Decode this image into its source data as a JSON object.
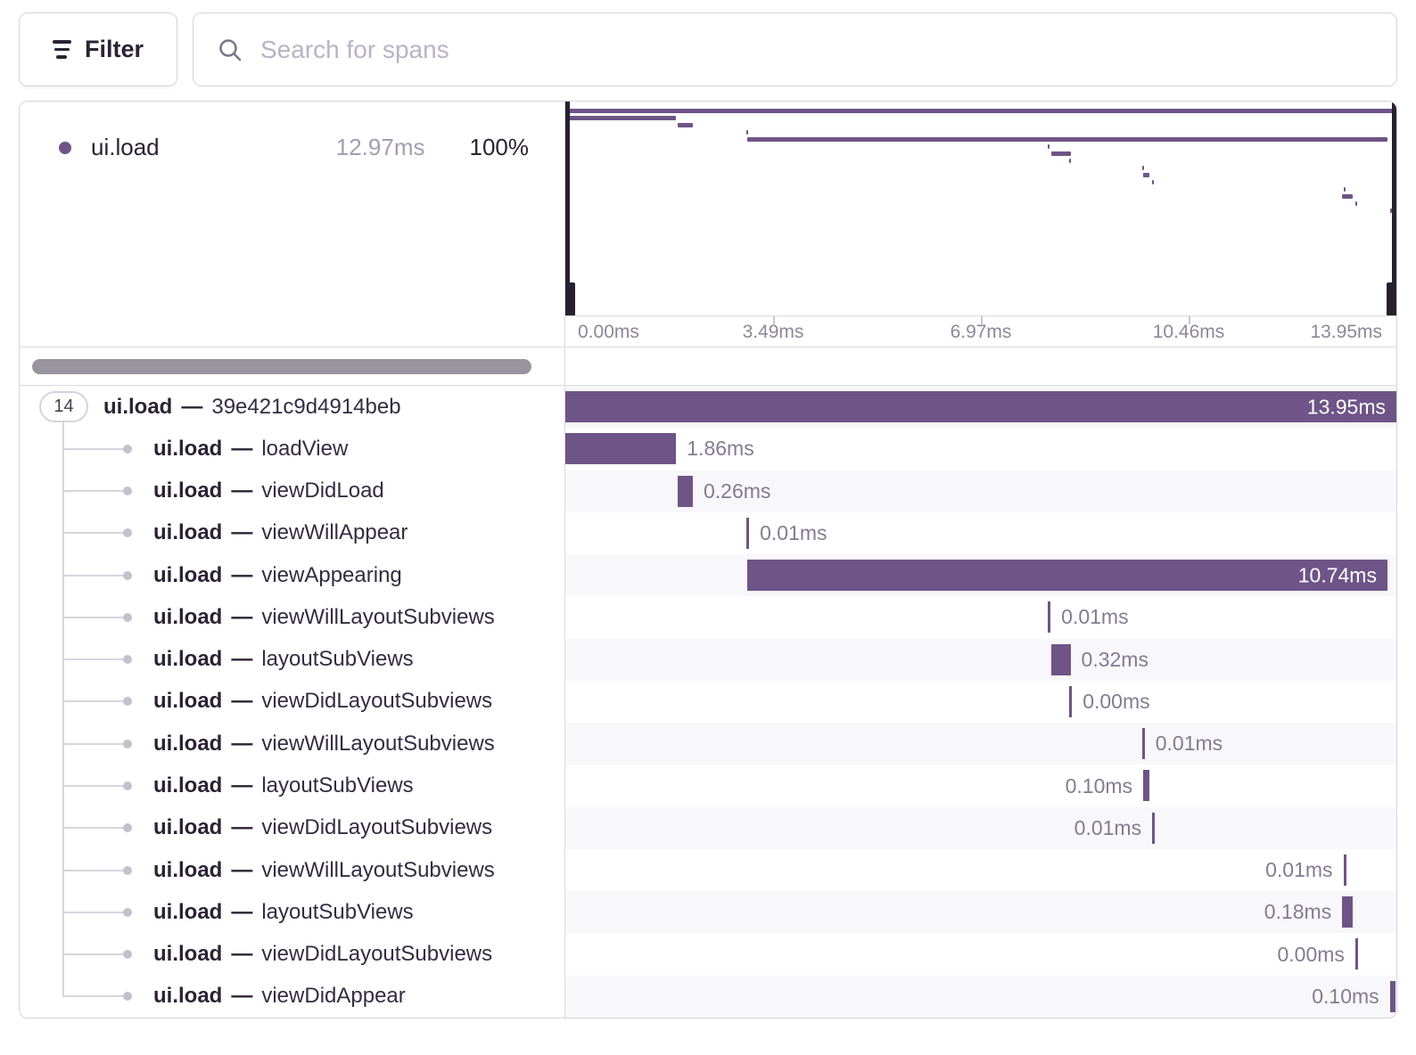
{
  "toolbar": {
    "filter_label": "Filter",
    "search_placeholder": "Search for spans",
    "search_value": ""
  },
  "legend": {
    "op": "ui.load",
    "duration": "12.97ms",
    "percent": "100%"
  },
  "axis": {
    "total_ms": 13.95,
    "ticks": [
      {
        "label": "0.00ms",
        "pos_pct": 0
      },
      {
        "label": "3.49ms",
        "pos_pct": 25
      },
      {
        "label": "6.97ms",
        "pos_pct": 50
      },
      {
        "label": "10.46ms",
        "pos_pct": 75
      },
      {
        "label": "13.95ms",
        "pos_pct": 100
      }
    ]
  },
  "spans": [
    {
      "op": "ui.load",
      "name": "39e421c9d4914beb",
      "child_count": "14",
      "start_ms": 0.0,
      "duration_ms": 13.95,
      "duration_label": "13.95ms",
      "label_position": "inside"
    },
    {
      "op": "ui.load",
      "name": "loadView",
      "start_ms": 0.0,
      "duration_ms": 1.86,
      "duration_label": "1.86ms",
      "label_position": "right"
    },
    {
      "op": "ui.load",
      "name": "viewDidLoad",
      "start_ms": 1.88,
      "duration_ms": 0.26,
      "duration_label": "0.26ms",
      "label_position": "right"
    },
    {
      "op": "ui.load",
      "name": "viewWillAppear",
      "start_ms": 3.04,
      "duration_ms": 0.01,
      "duration_label": "0.01ms",
      "label_position": "right"
    },
    {
      "op": "ui.load",
      "name": "viewAppearing",
      "start_ms": 3.06,
      "duration_ms": 10.74,
      "duration_label": "10.74ms",
      "label_position": "inside"
    },
    {
      "op": "ui.load",
      "name": "viewWillLayoutSubviews",
      "start_ms": 8.1,
      "duration_ms": 0.01,
      "duration_label": "0.01ms",
      "label_position": "right"
    },
    {
      "op": "ui.load",
      "name": "layoutSubViews",
      "start_ms": 8.16,
      "duration_ms": 0.32,
      "duration_label": "0.32ms",
      "label_position": "right"
    },
    {
      "op": "ui.load",
      "name": "viewDidLayoutSubviews",
      "start_ms": 8.46,
      "duration_ms": 0.0,
      "duration_label": "0.00ms",
      "label_position": "right"
    },
    {
      "op": "ui.load",
      "name": "viewWillLayoutSubviews",
      "start_ms": 9.68,
      "duration_ms": 0.01,
      "duration_label": "0.01ms",
      "label_position": "right"
    },
    {
      "op": "ui.load",
      "name": "layoutSubViews",
      "start_ms": 9.7,
      "duration_ms": 0.1,
      "duration_label": "0.10ms",
      "label_position": "left"
    },
    {
      "op": "ui.load",
      "name": "viewDidLayoutSubviews",
      "start_ms": 9.85,
      "duration_ms": 0.01,
      "duration_label": "0.01ms",
      "label_position": "left"
    },
    {
      "op": "ui.load",
      "name": "viewWillLayoutSubviews",
      "start_ms": 13.06,
      "duration_ms": 0.01,
      "duration_label": "0.01ms",
      "label_position": "left"
    },
    {
      "op": "ui.load",
      "name": "layoutSubViews",
      "start_ms": 13.04,
      "duration_ms": 0.18,
      "duration_label": "0.18ms",
      "label_position": "left"
    },
    {
      "op": "ui.load",
      "name": "viewDidLayoutSubviews",
      "start_ms": 13.26,
      "duration_ms": 0.0,
      "duration_label": "0.00ms",
      "label_position": "left"
    },
    {
      "op": "ui.load",
      "name": "viewDidAppear",
      "start_ms": 13.84,
      "duration_ms": 0.1,
      "duration_label": "0.10ms",
      "label_position": "left"
    }
  ],
  "colors": {
    "span_bar": "#6e5487",
    "dark_text": "#2b2233",
    "minimap_handle": "#27202f"
  }
}
